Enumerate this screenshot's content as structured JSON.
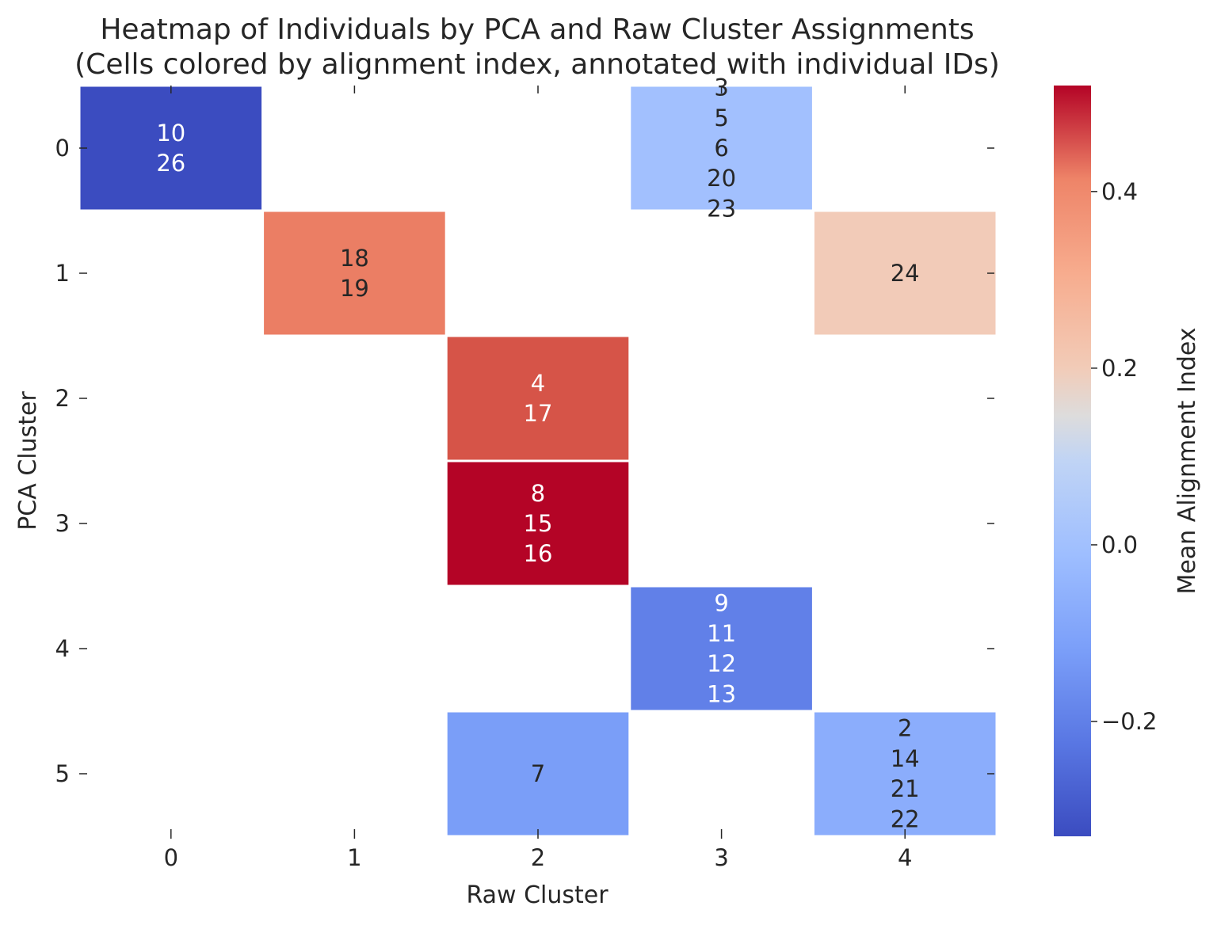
{
  "chart_data": {
    "type": "heatmap",
    "title": "Heatmap of Individuals by PCA and Raw Cluster Assignments",
    "subtitle": "(Cells colored by alignment index, annotated with individual IDs)",
    "xlabel": "Raw Cluster",
    "ylabel": "PCA Cluster",
    "x_categories": [
      "0",
      "1",
      "2",
      "3",
      "4"
    ],
    "y_categories": [
      "0",
      "1",
      "2",
      "3",
      "4",
      "5"
    ],
    "colorbar_label": "Mean Alignment Index",
    "colorbar_ticks": [
      -0.2,
      0.0,
      0.2,
      0.4
    ],
    "colorbar_tick_labels": [
      "−0.2",
      "0.0",
      "0.2",
      "0.4"
    ],
    "color_range": [
      -0.33,
      0.52
    ],
    "colormap": "coolwarm",
    "cells": [
      {
        "row": "0",
        "col": "0",
        "value": -0.33,
        "ids": [
          "10",
          "26"
        ]
      },
      {
        "row": "0",
        "col": "3",
        "value": 0.0,
        "ids": [
          "3",
          "5",
          "6",
          "20",
          "23"
        ]
      },
      {
        "row": "1",
        "col": "1",
        "value": 0.42,
        "ids": [
          "18",
          "19"
        ]
      },
      {
        "row": "1",
        "col": "4",
        "value": 0.2,
        "ids": [
          "24"
        ]
      },
      {
        "row": "2",
        "col": "2",
        "value": 0.46,
        "ids": [
          "4",
          "17"
        ]
      },
      {
        "row": "3",
        "col": "2",
        "value": 0.52,
        "ids": [
          "8",
          "15",
          "16"
        ]
      },
      {
        "row": "4",
        "col": "3",
        "value": -0.2,
        "ids": [
          "9",
          "11",
          "12",
          "13"
        ]
      },
      {
        "row": "5",
        "col": "2",
        "value": -0.12,
        "ids": [
          "7"
        ]
      },
      {
        "row": "5",
        "col": "4",
        "value": -0.07,
        "ids": [
          "2",
          "14",
          "21",
          "22"
        ]
      }
    ]
  }
}
